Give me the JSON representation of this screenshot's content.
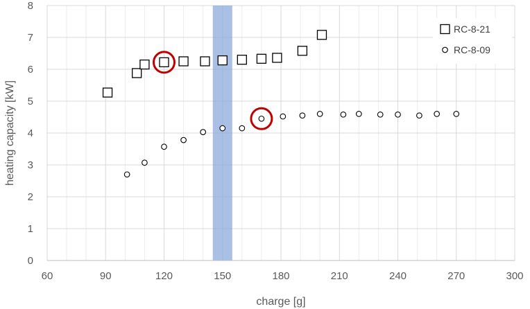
{
  "chart_data": {
    "type": "scatter",
    "xlabel": "charge [g]",
    "ylabel": "heating capacity [kW]",
    "xlim": [
      60,
      300
    ],
    "ylim": [
      0,
      8
    ],
    "x_ticks": [
      "60",
      "90",
      "120",
      "150",
      "180",
      "210",
      "240",
      "270",
      "300"
    ],
    "y_ticks": [
      "0",
      "1",
      "2",
      "3",
      "4",
      "5",
      "6",
      "7",
      "8"
    ],
    "grid": true,
    "minor_vertical_grid": true,
    "legend_position": "top-right",
    "highlight_band": {
      "x_from": 145,
      "x_to": 155,
      "color": "#8eaadb"
    },
    "series": [
      {
        "name": "RC-8-21",
        "marker": "square",
        "color": "#000000",
        "points": [
          [
            91,
            5.27
          ],
          [
            106,
            5.88
          ],
          [
            110,
            6.15
          ],
          [
            120,
            6.22
          ],
          [
            130,
            6.25
          ],
          [
            141,
            6.25
          ],
          [
            150,
            6.28
          ],
          [
            160,
            6.3
          ],
          [
            170,
            6.33
          ],
          [
            178,
            6.36
          ],
          [
            191,
            6.58
          ],
          [
            201,
            7.08
          ]
        ]
      },
      {
        "name": "RC-8-09",
        "marker": "circle",
        "color": "#000000",
        "points": [
          [
            101,
            2.7
          ],
          [
            110,
            3.07
          ],
          [
            120,
            3.57
          ],
          [
            130,
            3.78
          ],
          [
            140,
            4.03
          ],
          [
            150,
            4.15
          ],
          [
            160,
            4.15
          ],
          [
            170,
            4.45
          ],
          [
            181,
            4.52
          ],
          [
            191,
            4.55
          ],
          [
            200,
            4.6
          ],
          [
            212,
            4.58
          ],
          [
            220,
            4.6
          ],
          [
            231,
            4.58
          ],
          [
            240,
            4.58
          ],
          [
            251,
            4.55
          ],
          [
            260,
            4.6
          ],
          [
            270,
            4.6
          ]
        ]
      }
    ],
    "annotations": [
      {
        "type": "circle",
        "x": 120,
        "y": 6.22,
        "color": "#c00000"
      },
      {
        "type": "circle",
        "x": 170,
        "y": 4.45,
        "color": "#c00000"
      }
    ]
  }
}
